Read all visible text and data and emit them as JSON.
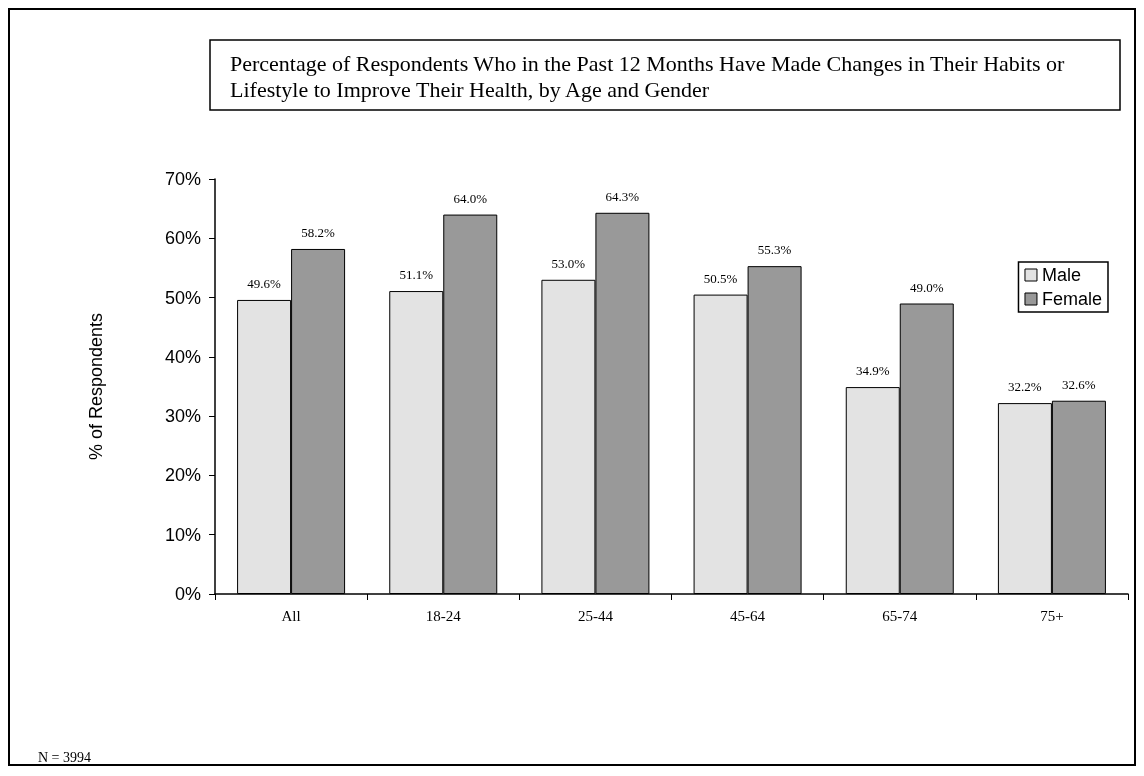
{
  "chart_data": {
    "type": "bar",
    "title": "Percentage of Respondents Who in the Past 12 Months Have Made Changes in Their Habits or Lifestyle to Improve Their Health, by Age and Gender",
    "ylabel": "% of Respondents",
    "categories": [
      "All",
      "18-24",
      "25-44",
      "45-64",
      "65-74",
      "75+"
    ],
    "series": [
      {
        "name": "Male",
        "color": "#e3e3e3",
        "values": [
          49.6,
          51.1,
          53.0,
          50.5,
          34.9,
          32.2
        ],
        "value_labels": [
          "49.6%",
          "51.1%",
          "53.0%",
          "50.5%",
          "34.9%",
          "32.2%"
        ]
      },
      {
        "name": "Female",
        "color": "#999999",
        "values": [
          58.2,
          64.0,
          64.3,
          55.3,
          49.0,
          32.6
        ],
        "value_labels": [
          "58.2%",
          "64.0%",
          "64.3%",
          "55.3%",
          "49.0%",
          "32.6%"
        ]
      }
    ],
    "ylim": [
      0,
      70
    ],
    "yticks": [
      {
        "value": 0,
        "label": "0%"
      },
      {
        "value": 10,
        "label": "10%"
      },
      {
        "value": 20,
        "label": "20%"
      },
      {
        "value": 30,
        "label": "30%"
      },
      {
        "value": 40,
        "label": "40%"
      },
      {
        "value": 50,
        "label": "50%"
      },
      {
        "value": 60,
        "label": "60%"
      },
      {
        "value": 70,
        "label": "70%"
      }
    ],
    "grid": false,
    "legend": "top right",
    "annotations": [
      "N = 3994"
    ]
  }
}
